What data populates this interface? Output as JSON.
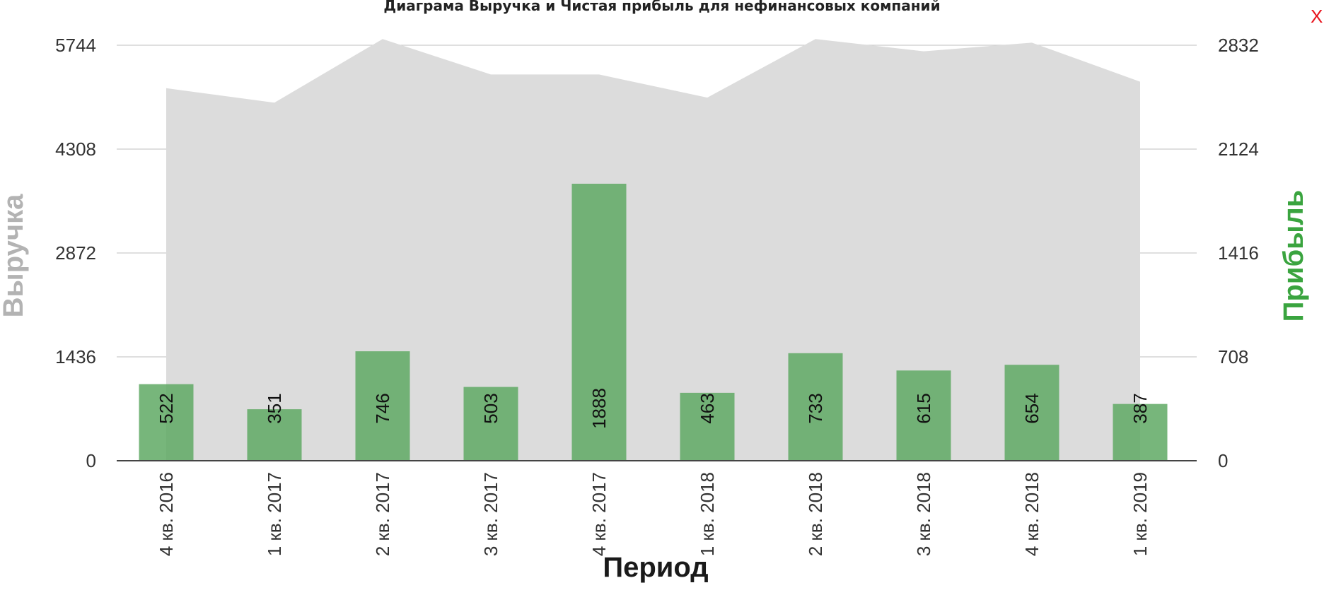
{
  "title": "Диаграма Выручка и Чистая прибыль для нефинансовых компаний",
  "close_label": "X",
  "chart_data": {
    "type": "bar",
    "title": "Диаграма Выручка и Чистая прибыль для нефинансовых компаний",
    "xlabel": "Период",
    "ylabel_left": "Выручка",
    "ylabel_right": "Прибыль",
    "categories": [
      "4 кв. 2016",
      "1 кв. 2017",
      "2 кв. 2017",
      "3 кв. 2017",
      "4 кв. 2017",
      "1 кв. 2018",
      "2 кв. 2018",
      "3 кв. 2018",
      "4 кв. 2018",
      "1 кв. 2019"
    ],
    "series": [
      {
        "name": "Выручка",
        "type": "area",
        "axis": "left",
        "values": [
          5150,
          4950,
          5830,
          5340,
          5340,
          5020,
          5830,
          5660,
          5780,
          5240
        ]
      },
      {
        "name": "Прибыль",
        "type": "bar",
        "axis": "right",
        "values": [
          522,
          351,
          746,
          503,
          1888,
          463,
          733,
          615,
          654,
          387
        ]
      }
    ],
    "left_ticks": [
      0,
      1436,
      2872,
      4308,
      5744
    ],
    "right_ticks": [
      0,
      708,
      1416,
      2124,
      2832
    ],
    "ylim_left": [
      0,
      5744
    ],
    "ylim_right": [
      0,
      2832
    ],
    "grid": true,
    "colors": {
      "area": "#dcdcdc",
      "bar": "#5fa964",
      "axis_left": "#b3b3b3",
      "axis_right": "#3aa43f",
      "grid": "#cccccc",
      "close": "#e8141d"
    }
  }
}
